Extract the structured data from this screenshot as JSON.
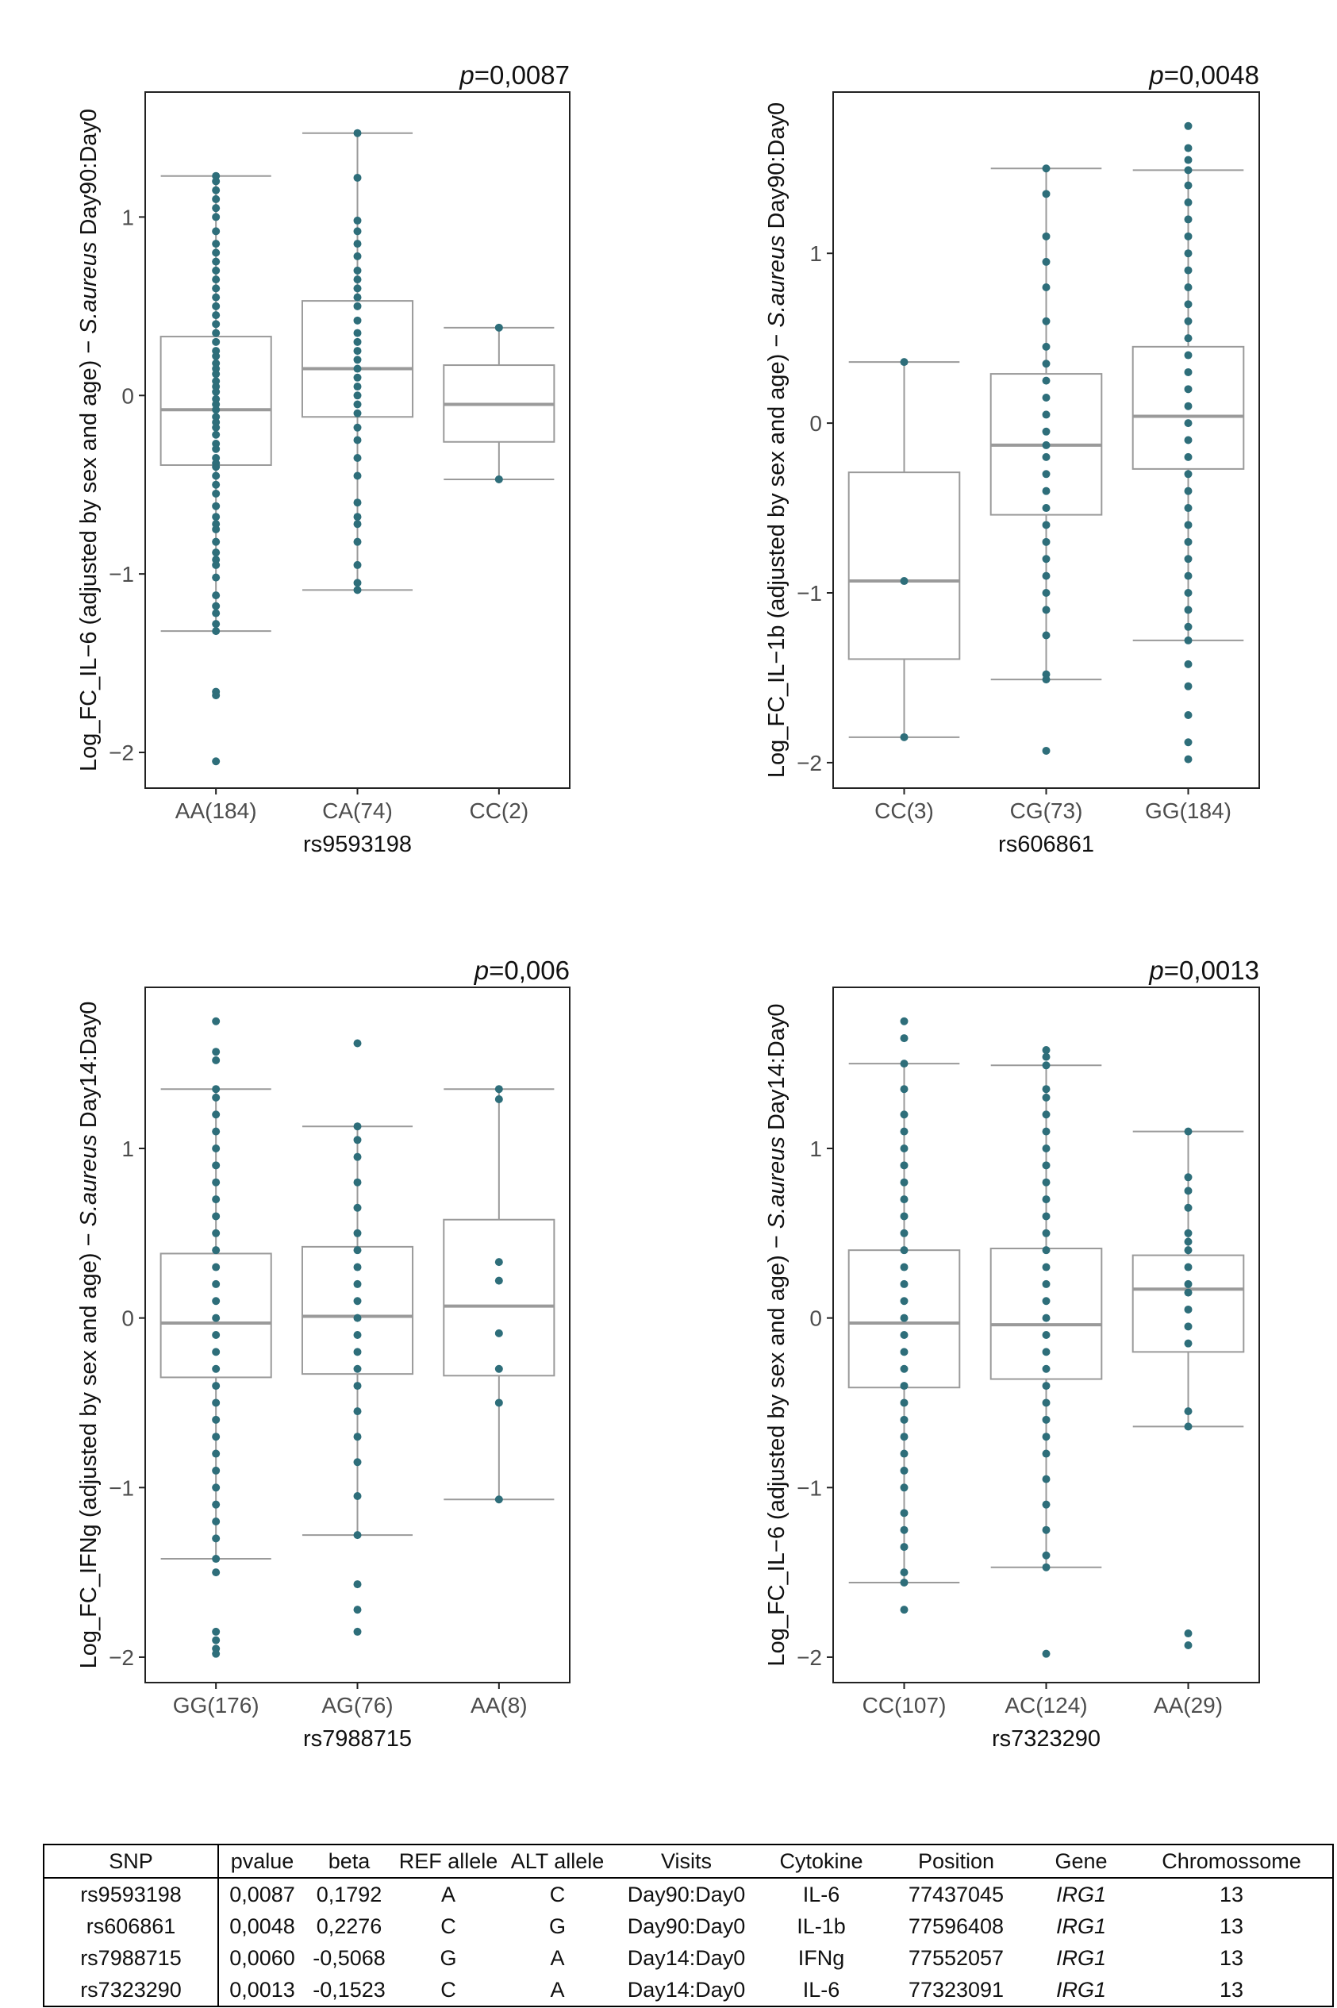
{
  "chart_data": [
    {
      "type": "box",
      "p_label": "p",
      "p_value": "=0,0087",
      "ylabel_pre": "Log_FC_IL−6 (adjusted by sex and age) − ",
      "ylabel_species": "S.aureus",
      "ylabel_post": " Day90:Day0",
      "xlabel": "rs9593198",
      "ylim": [
        -2.2,
        1.7
      ],
      "yticks": [
        1,
        0,
        -1,
        -2
      ],
      "ytick_labels": [
        "1",
        "0",
        "−1",
        "−2"
      ],
      "categories": [
        "AA(184)",
        "CA(74)",
        "CC(2)"
      ],
      "boxes": [
        {
          "q1": -0.39,
          "median": -0.08,
          "q3": 0.33,
          "lo": -1.32,
          "hi": 1.23
        },
        {
          "q1": -0.12,
          "median": 0.15,
          "q3": 0.53,
          "lo": -1.09,
          "hi": 1.47
        },
        {
          "q1": -0.26,
          "median": -0.05,
          "q3": 0.17,
          "lo": -0.47,
          "hi": 0.38
        }
      ],
      "points": [
        [
          -2.05,
          -1.68,
          -1.66,
          -1.32,
          -1.28,
          -1.22,
          -1.18,
          -1.12,
          -1.02,
          -0.95,
          -0.92,
          -0.88,
          -0.82,
          -0.75,
          -0.72,
          -0.68,
          -0.62,
          -0.55,
          -0.5,
          -0.45,
          -0.4,
          -0.38,
          -0.35,
          -0.3,
          -0.27,
          -0.22,
          -0.18,
          -0.15,
          -0.12,
          -0.08,
          -0.05,
          -0.02,
          0.02,
          0.05,
          0.08,
          0.12,
          0.15,
          0.18,
          0.22,
          0.25,
          0.3,
          0.35,
          0.4,
          0.45,
          0.5,
          0.55,
          0.6,
          0.65,
          0.7,
          0.75,
          0.8,
          0.85,
          0.92,
          1.0,
          1.05,
          1.1,
          1.15,
          1.2,
          1.23
        ],
        [
          -1.09,
          -1.05,
          -0.95,
          -0.82,
          -0.72,
          -0.68,
          -0.6,
          -0.45,
          -0.35,
          -0.25,
          -0.18,
          -0.1,
          -0.05,
          0.0,
          0.05,
          0.1,
          0.15,
          0.2,
          0.25,
          0.3,
          0.35,
          0.42,
          0.5,
          0.55,
          0.6,
          0.65,
          0.7,
          0.78,
          0.85,
          0.92,
          0.98,
          1.22,
          1.47
        ],
        [
          -0.47,
          0.38
        ]
      ]
    },
    {
      "type": "box",
      "p_label": "p",
      "p_value": "=0,0048",
      "ylabel_pre": "Log_FC_IL−1b (adjusted by sex and age) − ",
      "ylabel_species": "S.aureus",
      "ylabel_post": " Day90:Day0",
      "xlabel": "rs606861",
      "ylim": [
        -2.15,
        1.95
      ],
      "yticks": [
        1,
        0,
        -1,
        -2
      ],
      "ytick_labels": [
        "1",
        "0",
        "−1",
        "−2"
      ],
      "categories": [
        "CC(3)",
        "CG(73)",
        "GG(184)"
      ],
      "boxes": [
        {
          "q1": -1.39,
          "median": -0.93,
          "q3": -0.29,
          "lo": -1.85,
          "hi": 0.36
        },
        {
          "q1": -0.54,
          "median": -0.13,
          "q3": 0.29,
          "lo": -1.51,
          "hi": 1.5
        },
        {
          "q1": -0.27,
          "median": 0.04,
          "q3": 0.45,
          "lo": -1.28,
          "hi": 1.49
        }
      ],
      "points": [
        [
          -1.85,
          -0.93,
          0.36
        ],
        [
          -1.93,
          -1.51,
          -1.48,
          -1.25,
          -1.1,
          -1.0,
          -0.9,
          -0.8,
          -0.7,
          -0.6,
          -0.5,
          -0.4,
          -0.3,
          -0.2,
          -0.13,
          -0.05,
          0.05,
          0.15,
          0.25,
          0.35,
          0.45,
          0.6,
          0.8,
          0.95,
          1.1,
          1.35,
          1.5
        ],
        [
          -1.98,
          -1.88,
          -1.72,
          -1.55,
          -1.42,
          -1.28,
          -1.2,
          -1.1,
          -1.0,
          -0.9,
          -0.8,
          -0.7,
          -0.6,
          -0.5,
          -0.4,
          -0.3,
          -0.2,
          -0.1,
          0.0,
          0.1,
          0.2,
          0.3,
          0.4,
          0.5,
          0.6,
          0.7,
          0.8,
          0.9,
          1.0,
          1.1,
          1.2,
          1.3,
          1.4,
          1.49,
          1.55,
          1.62,
          1.75
        ]
      ]
    },
    {
      "type": "box",
      "p_label": "p",
      "p_value": "=0,006",
      "ylabel_pre": "Log_FC_IFNg (adjusted by sex and age) − ",
      "ylabel_species": "S.aureus",
      "ylabel_post": " Day14:Day0",
      "xlabel": "rs7988715",
      "ylim": [
        -2.15,
        1.95
      ],
      "yticks": [
        1,
        0,
        -1,
        -2
      ],
      "ytick_labels": [
        "1",
        "0",
        "−1",
        "−2"
      ],
      "categories": [
        "GG(176)",
        "AG(76)",
        "AA(8)"
      ],
      "boxes": [
        {
          "q1": -0.35,
          "median": -0.03,
          "q3": 0.38,
          "lo": -1.42,
          "hi": 1.35
        },
        {
          "q1": -0.33,
          "median": 0.01,
          "q3": 0.42,
          "lo": -1.28,
          "hi": 1.13
        },
        {
          "q1": -0.34,
          "median": 0.07,
          "q3": 0.58,
          "lo": -1.07,
          "hi": 1.35
        }
      ],
      "points": [
        [
          -1.98,
          -1.95,
          -1.9,
          -1.85,
          -1.5,
          -1.42,
          -1.3,
          -1.2,
          -1.1,
          -1.0,
          -0.9,
          -0.8,
          -0.7,
          -0.6,
          -0.5,
          -0.4,
          -0.3,
          -0.2,
          -0.1,
          0.0,
          0.1,
          0.2,
          0.3,
          0.4,
          0.5,
          0.6,
          0.7,
          0.8,
          0.9,
          1.0,
          1.1,
          1.2,
          1.3,
          1.35,
          1.52,
          1.57,
          1.75
        ],
        [
          -1.85,
          -1.72,
          -1.57,
          -1.28,
          -1.05,
          -0.85,
          -0.7,
          -0.55,
          -0.4,
          -0.3,
          -0.2,
          -0.1,
          0.0,
          0.1,
          0.2,
          0.3,
          0.4,
          0.5,
          0.65,
          0.8,
          0.95,
          1.05,
          1.13,
          1.62
        ],
        [
          -1.07,
          -0.5,
          -0.3,
          -0.09,
          0.22,
          0.33,
          1.29,
          1.35
        ]
      ]
    },
    {
      "type": "box",
      "p_label": "p",
      "p_value": "=0,0013",
      "ylabel_pre": "Log_FC_IL−6 (adjusted by sex and age) − ",
      "ylabel_species": "S.aureus",
      "ylabel_post": " Day14:Day0",
      "xlabel": "rs7323290",
      "ylim": [
        -2.15,
        1.95
      ],
      "yticks": [
        1,
        0,
        -1,
        -2
      ],
      "ytick_labels": [
        "1",
        "0",
        "−1",
        "−2"
      ],
      "categories": [
        "CC(107)",
        "AC(124)",
        "AA(29)"
      ],
      "boxes": [
        {
          "q1": -0.41,
          "median": -0.03,
          "q3": 0.4,
          "lo": -1.56,
          "hi": 1.5
        },
        {
          "q1": -0.36,
          "median": -0.04,
          "q3": 0.41,
          "lo": -1.47,
          "hi": 1.49
        },
        {
          "q1": -0.2,
          "median": 0.17,
          "q3": 0.37,
          "lo": -0.64,
          "hi": 1.1
        }
      ],
      "points": [
        [
          -1.72,
          -1.56,
          -1.5,
          -1.35,
          -1.25,
          -1.15,
          -1.0,
          -0.9,
          -0.8,
          -0.7,
          -0.6,
          -0.5,
          -0.4,
          -0.3,
          -0.2,
          -0.1,
          0.0,
          0.1,
          0.2,
          0.3,
          0.4,
          0.5,
          0.6,
          0.7,
          0.8,
          0.9,
          1.0,
          1.1,
          1.2,
          1.35,
          1.5,
          1.65,
          1.75
        ],
        [
          -1.98,
          -1.47,
          -1.4,
          -1.25,
          -1.1,
          -0.95,
          -0.8,
          -0.7,
          -0.6,
          -0.5,
          -0.4,
          -0.3,
          -0.2,
          -0.1,
          0.0,
          0.1,
          0.2,
          0.3,
          0.4,
          0.5,
          0.6,
          0.7,
          0.8,
          0.9,
          1.0,
          1.1,
          1.2,
          1.3,
          1.35,
          1.49,
          1.54,
          1.58
        ],
        [
          -1.93,
          -1.86,
          -0.64,
          -0.55,
          -0.15,
          -0.05,
          0.05,
          0.15,
          0.2,
          0.3,
          0.4,
          0.45,
          0.5,
          0.65,
          0.75,
          0.83,
          1.1
        ]
      ]
    }
  ],
  "table": {
    "headers": [
      "SNP",
      "pvalue",
      "beta",
      "REF allele",
      "ALT allele",
      "Visits",
      "Cytokine",
      "Position",
      "Gene",
      "Chromossome"
    ],
    "rows": [
      [
        "rs9593198",
        "0,0087",
        "0,1792",
        "A",
        "C",
        "Day90:Day0",
        "IL-6",
        "77437045",
        "IRG1",
        "13"
      ],
      [
        "rs606861",
        "0,0048",
        "0,2276",
        "C",
        "G",
        "Day90:Day0",
        "IL-1b",
        "77596408",
        "IRG1",
        "13"
      ],
      [
        "rs7988715",
        "0,0060",
        "-0,5068",
        "G",
        "A",
        "Day14:Day0",
        "IFNg",
        "77552057",
        "IRG1",
        "13"
      ],
      [
        "rs7323290",
        "0,0013",
        "-0,1523",
        "C",
        "A",
        "Day14:Day0",
        "IL-6",
        "77323091",
        "IRG1",
        "13"
      ]
    ]
  },
  "colors": {
    "point": "#2E6E7A",
    "box": "#9a9a9a",
    "frame": "#222222",
    "tick_text": "#4d4d4d",
    "text": "#111111"
  }
}
